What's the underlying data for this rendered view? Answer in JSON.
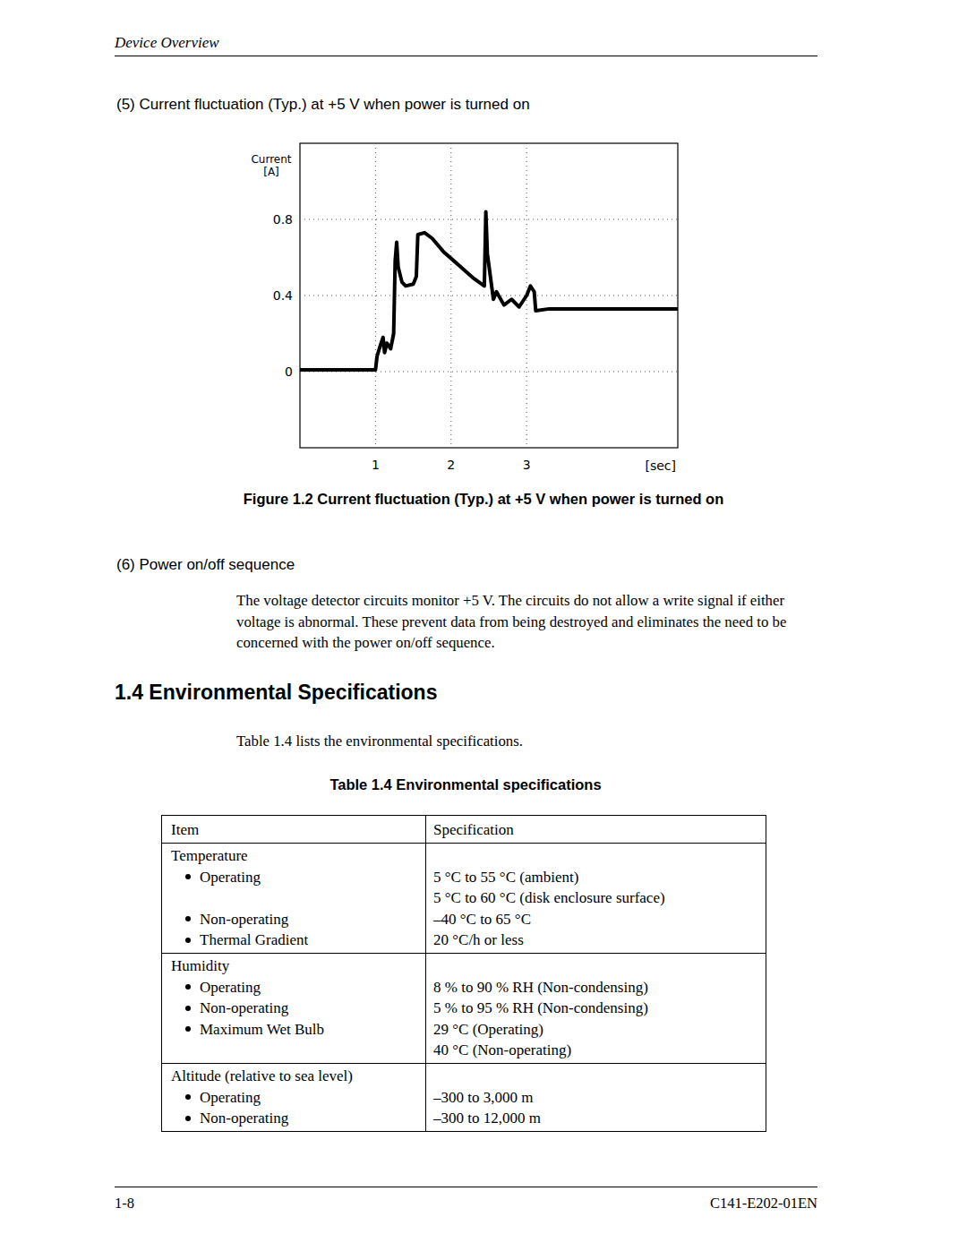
{
  "header_title": "Device Overview",
  "item5": "(5)  Current fluctuation (Typ.) at +5 V when power is turned on",
  "chart_data": {
    "type": "line",
    "y_label": [
      "Current",
      "[A]"
    ],
    "x_label": "[sec]",
    "x": [
      0,
      0.5,
      1.0,
      1.02,
      1.05,
      1.1,
      1.12,
      1.15,
      1.2,
      1.24,
      1.26,
      1.28,
      1.3,
      1.35,
      1.4,
      1.5,
      1.54,
      1.56,
      1.65,
      1.75,
      1.9,
      2.1,
      2.3,
      2.44,
      2.46,
      2.48,
      2.52,
      2.56,
      2.6,
      2.7,
      2.8,
      2.9,
      3.0,
      3.05,
      3.1,
      3.12,
      3.3,
      3.6,
      4.0,
      4.5,
      5.0
    ],
    "series": [
      {
        "name": "Current",
        "color": "#000000",
        "values": [
          0.01,
          0.01,
          0.01,
          0.08,
          0.12,
          0.18,
          0.1,
          0.15,
          0.12,
          0.2,
          0.58,
          0.68,
          0.55,
          0.47,
          0.45,
          0.46,
          0.5,
          0.72,
          0.73,
          0.7,
          0.63,
          0.56,
          0.49,
          0.45,
          0.84,
          0.62,
          0.5,
          0.38,
          0.42,
          0.35,
          0.38,
          0.34,
          0.4,
          0.45,
          0.42,
          0.32,
          0.33,
          0.33,
          0.33,
          0.33,
          0.33
        ]
      }
    ],
    "xlim": [
      0,
      5
    ],
    "ylim": [
      -0.4,
      1.2
    ],
    "xticks": [
      1,
      2,
      3
    ],
    "yticks": [
      0,
      0.4,
      0.8
    ],
    "grid": true
  },
  "figure_caption": "Figure 1.2  Current fluctuation (Typ.) at +5 V when power is turned on",
  "item6": "(6)  Power on/off sequence",
  "item6_text": "The voltage detector circuits monitor +5 V.  The circuits do not allow a write signal if either voltage is abnormal.  These prevent data from being destroyed and eliminates the need to be concerned with the power on/off sequence.",
  "section_heading": "1.4  Environmental Specifications",
  "intro": "Table 1.4 lists the environmental specifications.",
  "table": {
    "caption": "Table 1.4  Environmental specifications",
    "header": [
      "Item",
      "Specification"
    ],
    "groups": [
      {
        "title": "Temperature",
        "rows": [
          {
            "item": "Operating",
            "spec": [
              "5 °C to 55 °C (ambient)",
              "5 °C to 60 °C (disk enclosure surface)"
            ]
          },
          {
            "item": "Non-operating",
            "spec": [
              "–40 °C to 65 °C"
            ]
          },
          {
            "item": "Thermal Gradient",
            "spec": [
              "20 °C/h or less"
            ]
          }
        ]
      },
      {
        "title": "Humidity",
        "rows": [
          {
            "item": "Operating",
            "spec": [
              "8 % to 90 % RH (Non-condensing)"
            ]
          },
          {
            "item": "Non-operating",
            "spec": [
              "5 % to 95 % RH (Non-condensing)"
            ]
          },
          {
            "item": "Maximum Wet Bulb",
            "spec": [
              "29 °C (Operating)",
              "40 °C (Non-operating)"
            ]
          }
        ]
      },
      {
        "title": "Altitude (relative to sea level)",
        "rows": [
          {
            "item": "Operating",
            "spec": [
              "–300 to 3,000 m"
            ]
          },
          {
            "item": "Non-operating",
            "spec": [
              "–300 to 12,000 m"
            ]
          }
        ]
      }
    ]
  },
  "footer": {
    "left": "1-8",
    "right": "C141-E202-01EN"
  }
}
